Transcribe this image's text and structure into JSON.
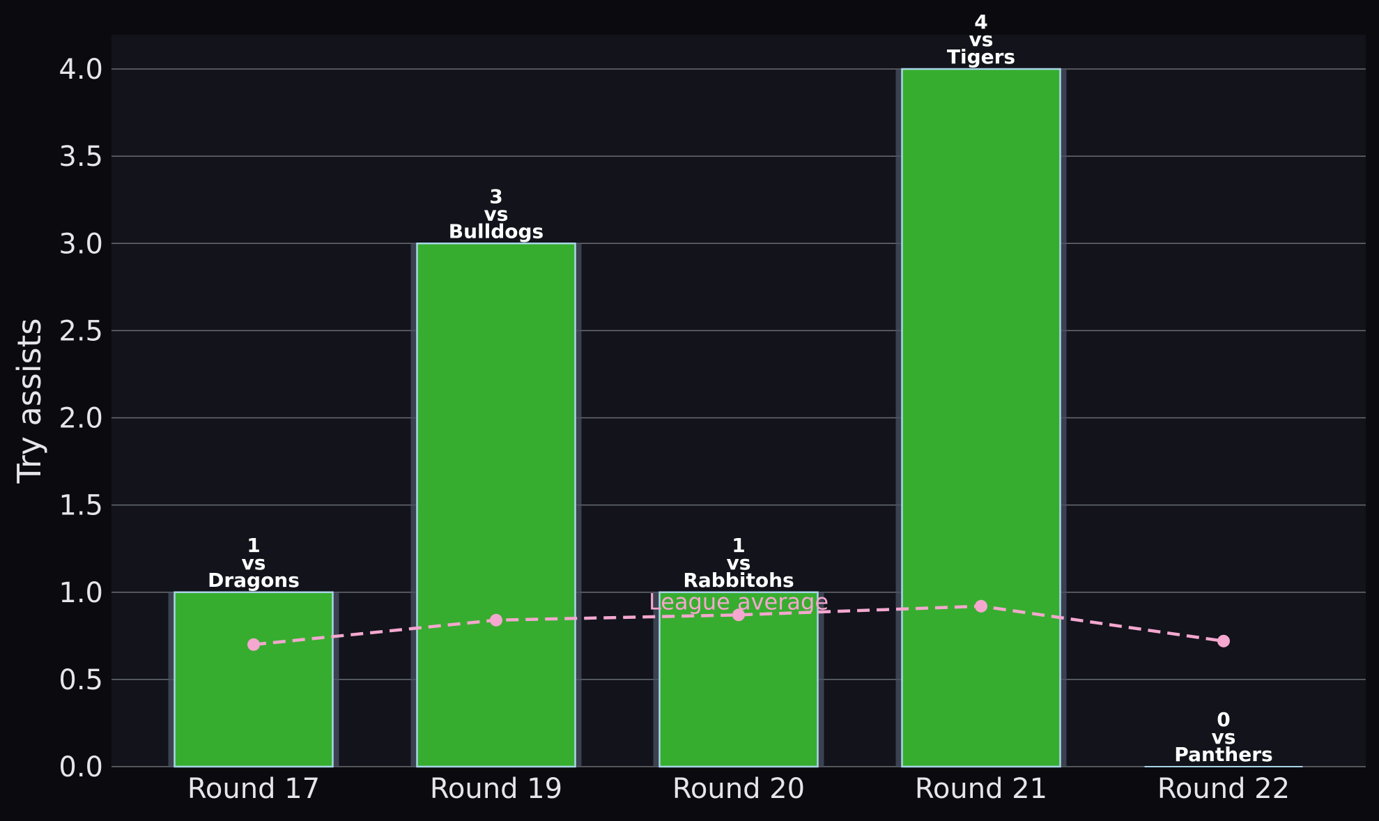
{
  "chart_data": {
    "type": "bar",
    "categories": [
      "Round 17",
      "Round 19",
      "Round 20",
      "Round 21",
      "Round 22"
    ],
    "values": [
      1,
      3,
      1,
      4,
      0
    ],
    "opponents": [
      "Dragons",
      "Bulldogs",
      "Rabbitohs",
      "Tigers",
      "Panthers"
    ],
    "bar_label_connector": "vs",
    "ylabel": "Try assists",
    "xlabel": "",
    "ylim": [
      0,
      4.2
    ],
    "yticks": [
      0.0,
      0.5,
      1.0,
      1.5,
      2.0,
      2.5,
      3.0,
      3.5,
      4.0
    ],
    "grid": true,
    "line_series": {
      "name": "League average",
      "values": [
        0.7,
        0.84,
        0.87,
        0.92,
        0.72
      ]
    },
    "colors": {
      "bar": "#37ad2f",
      "bar_edge": "#a9d6e8",
      "bar_glow": "#4a5263",
      "line": "#f4a7cf",
      "plot_bg": "#12131b",
      "page_bg": "#0b0b0f",
      "grid": "#6a6d75"
    }
  }
}
